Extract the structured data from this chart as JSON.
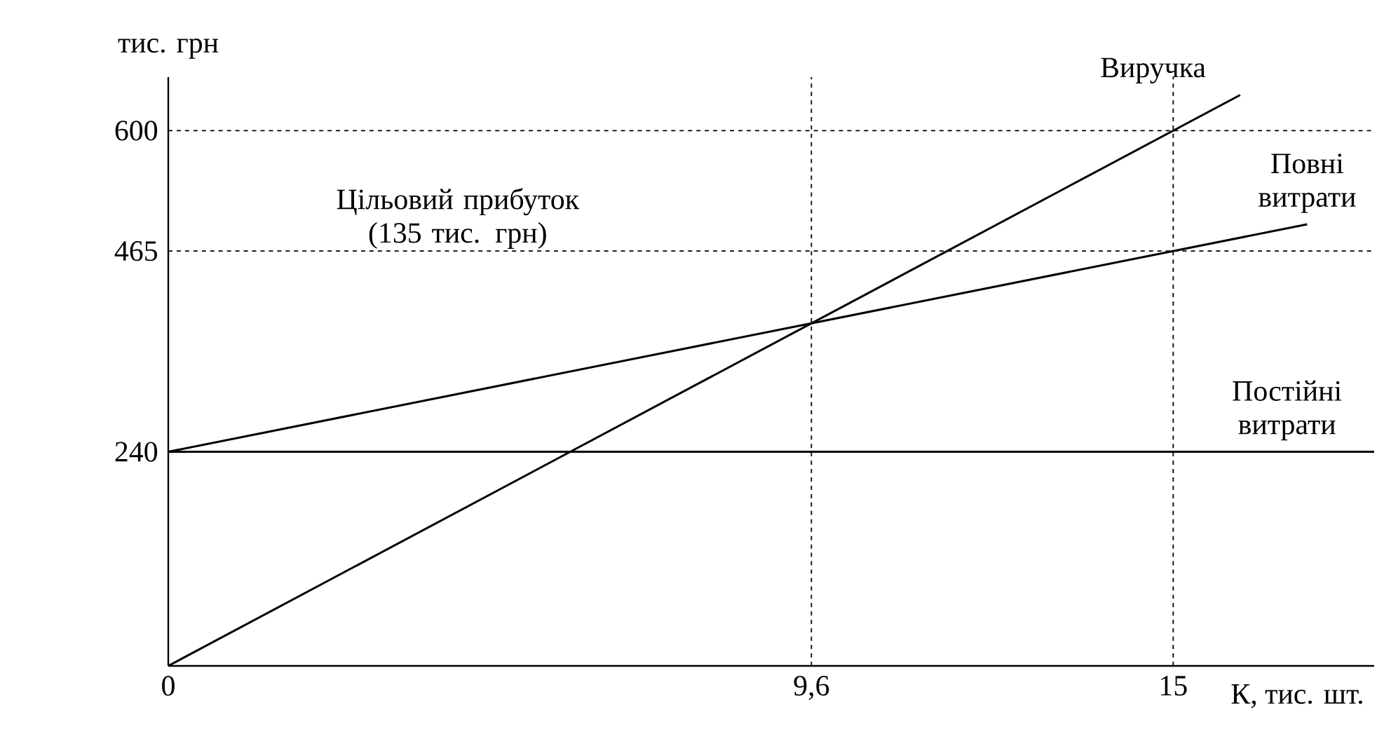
{
  "chart_data": {
    "type": "line",
    "xlabel": "К, тис. шт.",
    "ylabel": "тис. грн",
    "xlim": [
      0,
      18
    ],
    "ylim": [
      0,
      660
    ],
    "xticks": [
      0,
      {
        "value": 9.6,
        "label": "9,6"
      },
      15
    ],
    "yticks": [
      240,
      465,
      600
    ],
    "line_style": "solid",
    "marker": "none",
    "series": [
      {
        "name": "Виручка",
        "color": "#000000",
        "x": [
          0,
          16
        ],
        "values": [
          0,
          640
        ]
      },
      {
        "name": "Повні витрати",
        "color": "#000000",
        "x": [
          0,
          17
        ],
        "values": [
          240,
          495
        ]
      },
      {
        "name": "Постійні витрати",
        "color": "#000000",
        "x": [
          0,
          18
        ],
        "values": [
          240,
          240
        ]
      }
    ],
    "ref_lines": [
      {
        "axis": "y",
        "value": 600,
        "line_style": "dashed"
      },
      {
        "axis": "y",
        "value": 465,
        "line_style": "dashed"
      },
      {
        "axis": "x",
        "value": 9.6,
        "line_style": "dashed"
      },
      {
        "axis": "x",
        "value": 15,
        "line_style": "dashed"
      }
    ],
    "annotations": [
      "Цільовий прибуток (135 тис. грн)"
    ]
  }
}
